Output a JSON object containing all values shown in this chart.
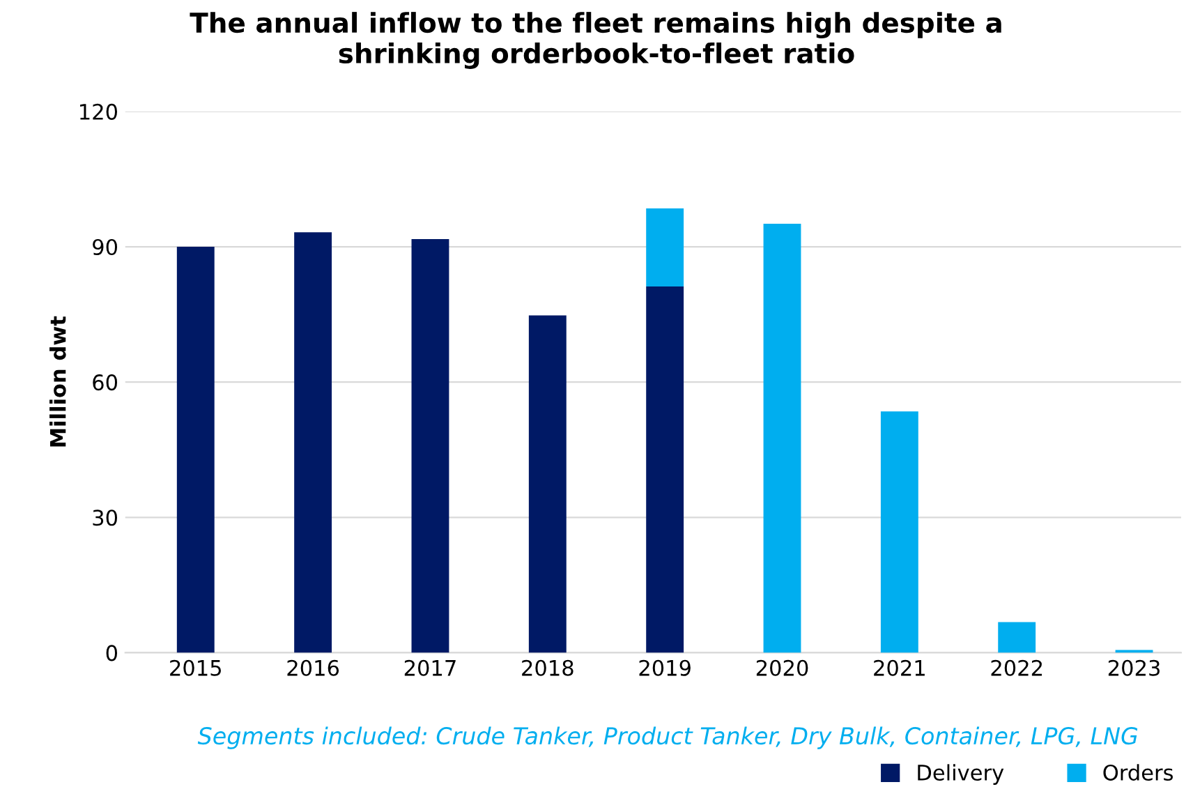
{
  "chart_data": {
    "type": "bar",
    "stacked": true,
    "title": "The annual inflow to the fleet remains high despite a\nshrinking orderbook-to-fleet ratio",
    "ylabel": "Million dwt",
    "categories": [
      "2015",
      "2016",
      "2017",
      "2018",
      "2019",
      "2020",
      "2021",
      "2022",
      "2023"
    ],
    "series": [
      {
        "name": "Delivery",
        "color": "#001965",
        "values": [
          90,
          93.2,
          91.7,
          74.8,
          81.2,
          null,
          null,
          null,
          null
        ]
      },
      {
        "name": "Orders",
        "color": "#00aeef",
        "values": [
          null,
          null,
          null,
          null,
          17.3,
          95.1,
          53.5,
          6.8,
          0.6
        ]
      }
    ],
    "ylim": [
      0,
      120
    ],
    "yticks": [
      0,
      30,
      60,
      90,
      120
    ],
    "grid": "y",
    "legend": "bottom right",
    "annotations": [
      "Segments included: Crude Tanker, Product Tanker, Dry Bulk, Container, LPG, LNG"
    ]
  }
}
